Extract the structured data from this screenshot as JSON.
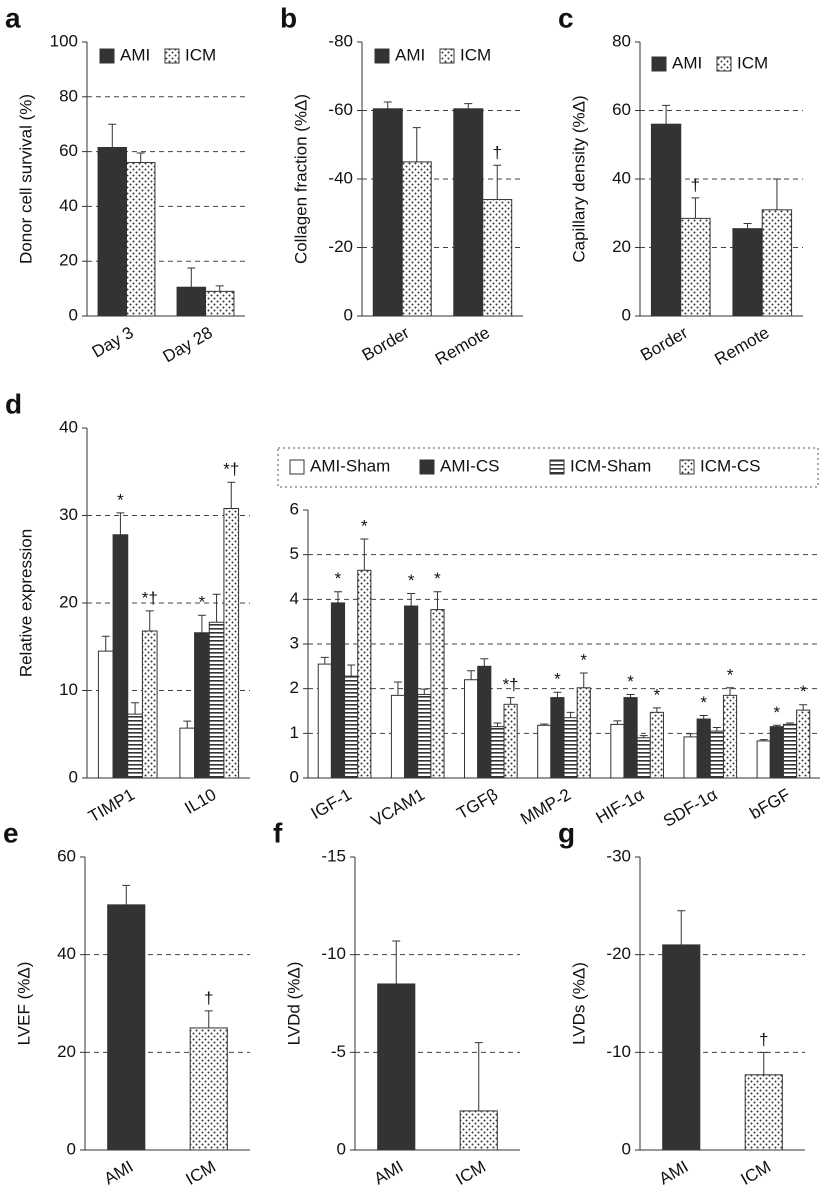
{
  "chart_data": [
    {
      "type": "bar",
      "panel": "a",
      "ylabel": "Donor cell survival (%)",
      "categories": [
        "Day 3",
        "Day 28"
      ],
      "series": [
        {
          "name": "AMI",
          "pattern": "solid",
          "values": [
            61.5,
            10.5
          ],
          "errors": [
            8.5,
            7
          ]
        },
        {
          "name": "ICM",
          "pattern": "dots",
          "values": [
            56,
            9
          ],
          "errors": [
            3.5,
            2
          ]
        }
      ],
      "ylim": [
        0,
        100
      ],
      "yticks": [
        0,
        20,
        40,
        60,
        80,
        100
      ],
      "grid": true,
      "legend": true
    },
    {
      "type": "bar",
      "panel": "b",
      "ylabel": "Collagen fraction (%Δ)",
      "categories": [
        "Border",
        "Remote"
      ],
      "series": [
        {
          "name": "AMI",
          "pattern": "solid",
          "values": [
            -60.5,
            -60.5
          ],
          "errors": [
            2,
            1.5
          ]
        },
        {
          "name": "ICM",
          "pattern": "dots",
          "values": [
            -45,
            -34
          ],
          "errors": [
            10,
            10
          ],
          "annotations": [
            null,
            "†"
          ]
        }
      ],
      "ylim": [
        0,
        -80
      ],
      "yticks": [
        0,
        -20,
        -40,
        -60,
        -80
      ],
      "grid": true,
      "legend": true
    },
    {
      "type": "bar",
      "panel": "c",
      "ylabel": "Capillary density (%Δ)",
      "categories": [
        "Border",
        "Remote"
      ],
      "series": [
        {
          "name": "AMI",
          "pattern": "solid",
          "values": [
            56,
            25.5
          ],
          "errors": [
            5.5,
            1.5
          ]
        },
        {
          "name": "ICM",
          "pattern": "dots",
          "values": [
            28.5,
            31
          ],
          "errors": [
            6,
            9
          ],
          "annotations": [
            "†",
            null
          ]
        }
      ],
      "ylim": [
        0,
        80
      ],
      "yticks": [
        0,
        20,
        40,
        60,
        80
      ],
      "grid": true,
      "legend": true
    },
    {
      "type": "bar",
      "panel": "d",
      "ylabel": "Relative expression",
      "categories": [
        "TIMP1",
        "IL10"
      ],
      "series": [
        {
          "pattern": "open",
          "values": [
            14.5,
            5.7
          ],
          "errors": [
            1.7,
            0.8
          ]
        },
        {
          "pattern": "solid",
          "values": [
            27.8,
            16.6
          ],
          "errors": [
            2.5,
            2
          ],
          "annotations": [
            "*",
            "*"
          ]
        },
        {
          "pattern": "stripes",
          "values": [
            7.3,
            17.8
          ],
          "errors": [
            1.3,
            3.2
          ]
        },
        {
          "pattern": "dots",
          "values": [
            16.8,
            30.8
          ],
          "errors": [
            2.3,
            3
          ],
          "annotations": [
            "*†",
            "*†"
          ]
        }
      ],
      "ylim": [
        0,
        40
      ],
      "yticks": [
        0,
        10,
        20,
        30,
        40
      ],
      "grid": true,
      "legend": false
    },
    {
      "type": "bar",
      "categories": [
        "IGF-1",
        "VCAM1",
        "TGFβ",
        "MMP-2",
        "HIF-1α",
        "SDF-1α",
        "bFGF"
      ],
      "series": [
        {
          "name": "AMI-Sham",
          "pattern": "open",
          "values": [
            2.55,
            1.85,
            2.2,
            1.18,
            1.2,
            0.92,
            0.83
          ],
          "errors": [
            0.15,
            0.3,
            0.2,
            0.03,
            0.08,
            0.07,
            0.03
          ]
        },
        {
          "name": "AMI-CS",
          "pattern": "solid",
          "values": [
            3.92,
            3.85,
            2.5,
            1.8,
            1.8,
            1.32,
            1.15
          ],
          "errors": [
            0.25,
            0.28,
            0.17,
            0.12,
            0.07,
            0.08,
            0.03
          ],
          "annotations": [
            "*",
            "*",
            null,
            "*",
            "*",
            "*",
            "*"
          ]
        },
        {
          "name": "ICM-Sham",
          "pattern": "stripes",
          "values": [
            2.28,
            1.87,
            1.15,
            1.35,
            0.9,
            1.05,
            1.2
          ],
          "errors": [
            0.25,
            0.12,
            0.08,
            0.12,
            0.05,
            0.08,
            0.03
          ]
        },
        {
          "name": "ICM-CS",
          "pattern": "dots",
          "values": [
            4.65,
            3.77,
            1.65,
            2.02,
            1.47,
            1.85,
            1.52
          ],
          "errors": [
            0.7,
            0.4,
            0.15,
            0.33,
            0.1,
            0.17,
            0.12
          ],
          "annotations": [
            "*",
            "*",
            "*†",
            "*",
            "*",
            "*",
            "*"
          ]
        }
      ],
      "ylim": [
        0,
        6
      ],
      "yticks": [
        0,
        1,
        2,
        3,
        4,
        5,
        6
      ],
      "grid": true,
      "legend": true
    },
    {
      "type": "bar",
      "panel": "e",
      "ylabel": "LVEF (%Δ)",
      "categories": [
        "AMI",
        "ICM"
      ],
      "values": [
        50.2,
        25
      ],
      "errors": [
        4,
        3.5
      ],
      "patterns": [
        "solid",
        "dots"
      ],
      "annotations": [
        null,
        "†"
      ],
      "ylim": [
        0,
        60
      ],
      "yticks": [
        0,
        20,
        40,
        60
      ],
      "grid": true
    },
    {
      "type": "bar",
      "panel": "f",
      "ylabel": "LVDd (%Δ)",
      "categories": [
        "AMI",
        "ICM"
      ],
      "values": [
        -8.5,
        -2
      ],
      "errors": [
        2.2,
        3.5
      ],
      "patterns": [
        "solid",
        "dots"
      ],
      "ylim": [
        0,
        -15
      ],
      "yticks": [
        0,
        -5,
        -10,
        -15
      ],
      "grid": true
    },
    {
      "type": "bar",
      "panel": "g",
      "ylabel": "LVDs (%Δ)",
      "categories": [
        "AMI",
        "ICM"
      ],
      "values": [
        -21,
        -7.7
      ],
      "errors": [
        3.5,
        2.3
      ],
      "patterns": [
        "solid",
        "dots"
      ],
      "annotations": [
        null,
        "†"
      ],
      "ylim": [
        0,
        -30
      ],
      "yticks": [
        0,
        -10,
        -20,
        -30
      ],
      "grid": true
    }
  ]
}
